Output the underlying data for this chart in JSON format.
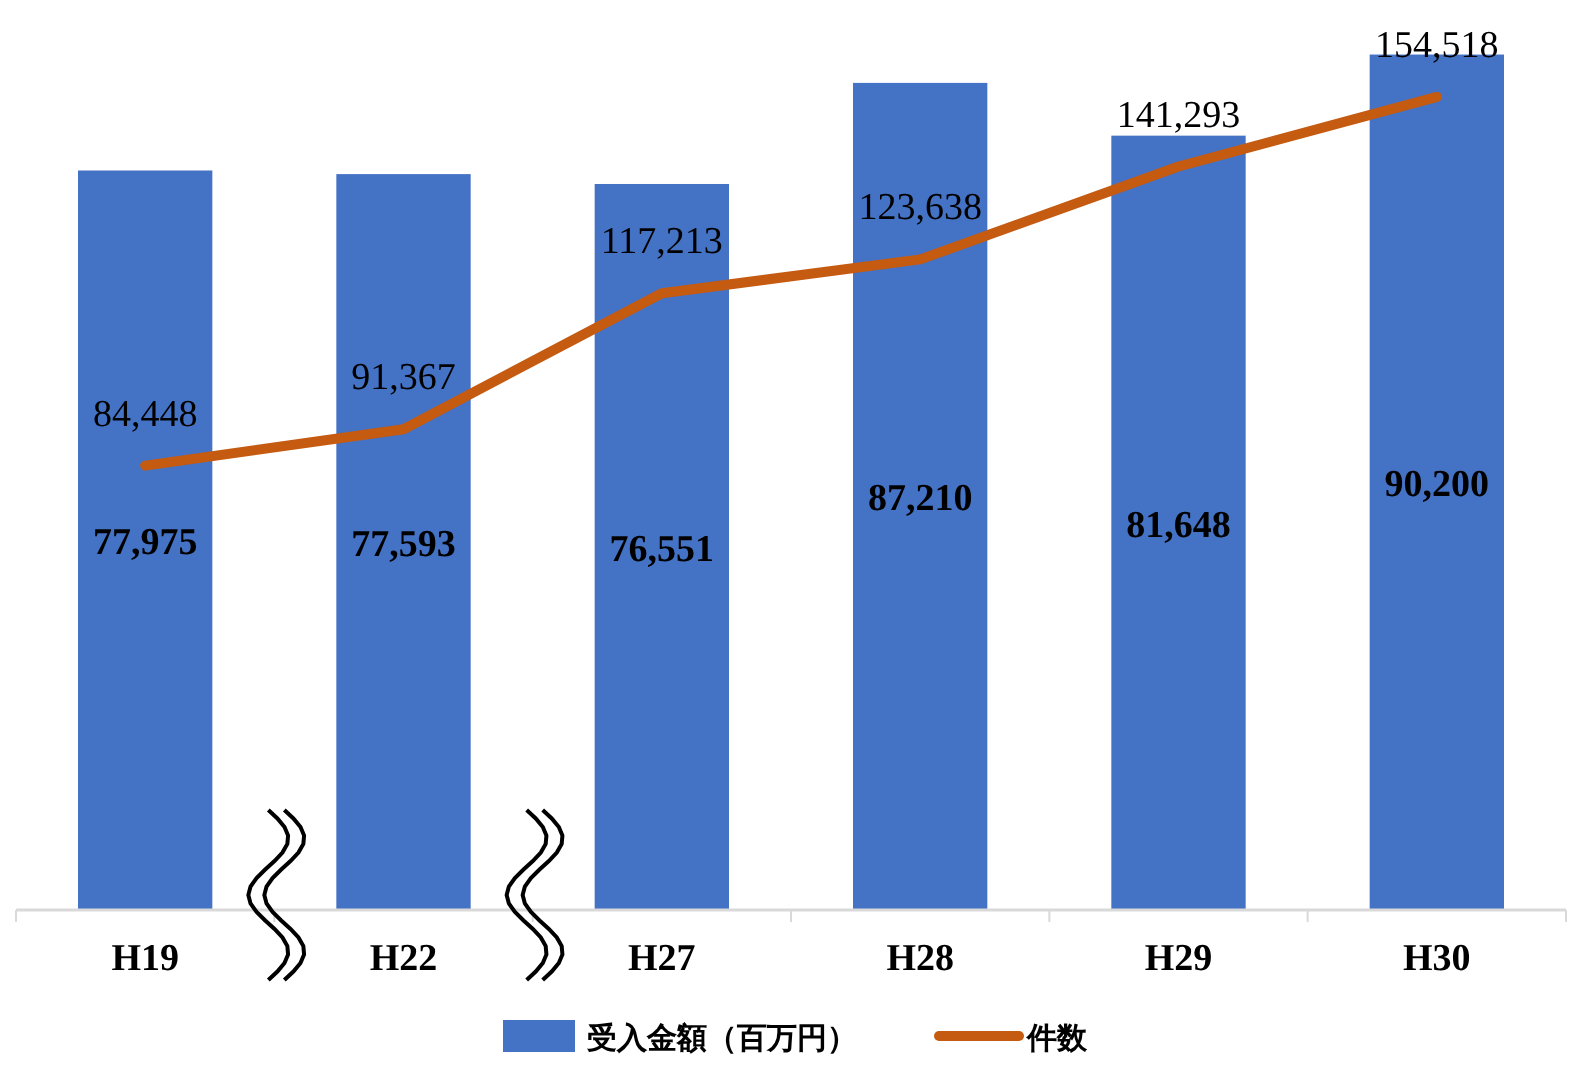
{
  "chart_data": {
    "type": "bar",
    "categories": [
      "H19",
      "H22",
      "H27",
      "H28",
      "H29",
      "H30"
    ],
    "series": [
      {
        "name": "受入金額（百万円）",
        "color": "#4472c4",
        "values": [
          77975,
          77593,
          76551,
          87210,
          81648,
          90200
        ],
        "value_labels": [
          "77,975",
          "77,593",
          "76,551",
          "87,210",
          "81,648",
          "90,200"
        ]
      },
      {
        "name": "件数",
        "type": "line",
        "axis": "y2",
        "color": "#c55a11",
        "values": [
          84448,
          91367,
          117213,
          123638,
          141293,
          154518
        ],
        "value_labels": [
          "84,448",
          "91,367",
          "117,213",
          "123,638",
          "141,293",
          "154,518"
        ]
      }
    ],
    "tick_labels": "x",
    "legend": "bottom",
    "grid": false
  }
}
